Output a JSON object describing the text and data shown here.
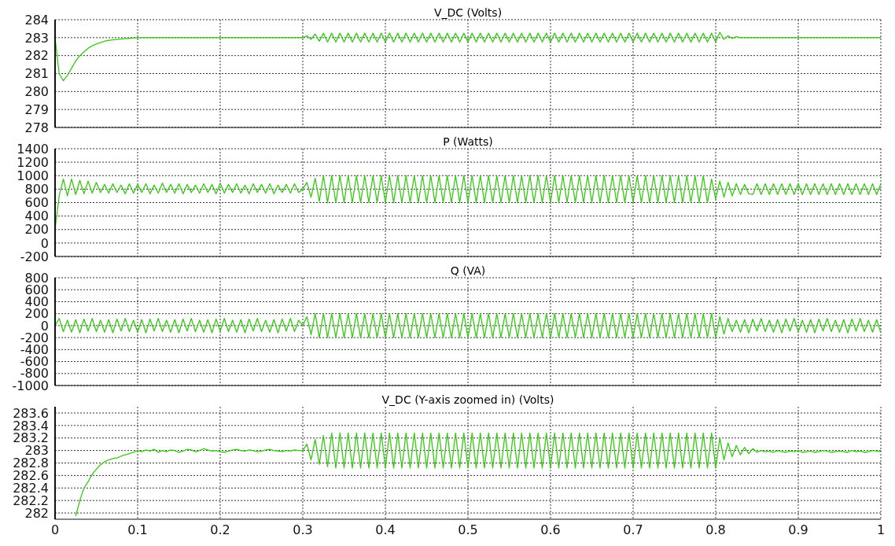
{
  "chart_data": [
    {
      "type": "line",
      "title": "V_DC (Volts)",
      "xlim": [
        0,
        1
      ],
      "xticks": [
        0,
        0.1,
        0.2,
        0.3,
        0.4,
        0.5,
        0.6,
        0.7,
        0.8,
        0.9,
        1
      ],
      "ylim": [
        278,
        284
      ],
      "yticks": [
        278,
        279,
        280,
        281,
        282,
        283,
        284
      ],
      "grid": true,
      "tick_labels": "y",
      "marker": "none",
      "line_style": "solid",
      "x": [
        0,
        0.005,
        0.01,
        0.015,
        0.02,
        0.025,
        0.03,
        0.035,
        0.04,
        0.045,
        0.05,
        0.055,
        0.06,
        0.065,
        0.07,
        0.075,
        0.08,
        0.085,
        0.09,
        0.095,
        0.1,
        0.105,
        0.11,
        0.115,
        0.12,
        0.125,
        0.13,
        0.135,
        0.14,
        0.145,
        0.15,
        0.155,
        0.16,
        0.165,
        0.17,
        0.175,
        0.18,
        0.185,
        0.19,
        0.195,
        0.2,
        0.205,
        0.21,
        0.215,
        0.22,
        0.225,
        0.23,
        0.235,
        0.24,
        0.245,
        0.25,
        0.255,
        0.26,
        0.265,
        0.27,
        0.275,
        0.28,
        0.285,
        0.29,
        0.295,
        0.3,
        0.305,
        0.31,
        0.315,
        0.32,
        0.325,
        0.33,
        0.335,
        0.34,
        0.345,
        0.35,
        0.355,
        0.36,
        0.365,
        0.37,
        0.375,
        0.38,
        0.385,
        0.39,
        0.395,
        0.4,
        0.405,
        0.41,
        0.415,
        0.42,
        0.425,
        0.43,
        0.435,
        0.44,
        0.445,
        0.45,
        0.455,
        0.46,
        0.465,
        0.47,
        0.475,
        0.48,
        0.485,
        0.49,
        0.495,
        0.5,
        0.505,
        0.51,
        0.515,
        0.52,
        0.525,
        0.53,
        0.535,
        0.54,
        0.545,
        0.55,
        0.555,
        0.56,
        0.565,
        0.57,
        0.575,
        0.58,
        0.585,
        0.59,
        0.595,
        0.6,
        0.605,
        0.61,
        0.615,
        0.62,
        0.625,
        0.63,
        0.635,
        0.64,
        0.645,
        0.65,
        0.655,
        0.66,
        0.665,
        0.67,
        0.675,
        0.68,
        0.685,
        0.69,
        0.695,
        0.7,
        0.705,
        0.71,
        0.715,
        0.72,
        0.725,
        0.73,
        0.735,
        0.74,
        0.745,
        0.75,
        0.755,
        0.76,
        0.765,
        0.77,
        0.775,
        0.78,
        0.785,
        0.79,
        0.795,
        0.8,
        0.805,
        0.81,
        0.815,
        0.82,
        0.825,
        0.83,
        0.835,
        0.84,
        0.845,
        0.85,
        0.855,
        0.86,
        0.865,
        0.87,
        0.875,
        0.88,
        0.885,
        0.89,
        0.895,
        0.9,
        0.905,
        0.91,
        0.915,
        0.92,
        0.925,
        0.93,
        0.935,
        0.94,
        0.945,
        0.95,
        0.955,
        0.96,
        0.965,
        0.97,
        0.975,
        0.98,
        0.985,
        0.99,
        0.995,
        1
      ],
      "series": [
        {
          "color": "#33cc11",
          "values": [
            283,
            281,
            280.6,
            280.9,
            281.3,
            281.7,
            282,
            282.2,
            282.4,
            282.55,
            282.65,
            282.72,
            282.8,
            282.85,
            282.88,
            282.9,
            282.92,
            282.94,
            282.96,
            282.98,
            283,
            283,
            283,
            283,
            283,
            283,
            283,
            283,
            283,
            283,
            283,
            283,
            283,
            283,
            283,
            283,
            283,
            283,
            283,
            283,
            283,
            283,
            283,
            283,
            283,
            283,
            283,
            283,
            283,
            283,
            283,
            283,
            283,
            283,
            283,
            283,
            283,
            283,
            283,
            283,
            283,
            283.1,
            282.9,
            283.2,
            282.8,
            283.25,
            282.75,
            283.25,
            282.75,
            283.25,
            282.75,
            283.25,
            282.75,
            283.25,
            282.75,
            283.25,
            282.75,
            283.25,
            282.75,
            283.25,
            282.75,
            283.25,
            282.75,
            283.25,
            282.75,
            283.25,
            282.75,
            283.25,
            282.75,
            283.25,
            282.75,
            283.25,
            282.75,
            283.25,
            282.75,
            283.25,
            282.75,
            283.25,
            282.75,
            283.25,
            282.75,
            283.25,
            282.75,
            283.25,
            282.75,
            283.25,
            282.75,
            283.25,
            282.75,
            283.25,
            282.75,
            283.25,
            282.75,
            283.25,
            282.75,
            283.25,
            282.75,
            283.25,
            282.75,
            283.25,
            282.75,
            283.25,
            282.75,
            283.25,
            282.75,
            283.25,
            282.75,
            283.25,
            282.75,
            283.25,
            282.75,
            283.25,
            282.75,
            283.25,
            282.75,
            283.25,
            282.75,
            283.25,
            282.75,
            283.25,
            282.75,
            283.25,
            282.75,
            283.25,
            282.75,
            283.25,
            282.75,
            283.25,
            282.75,
            283.25,
            282.75,
            283.25,
            282.75,
            283.25,
            282.75,
            283.25,
            282.75,
            283.25,
            282.75,
            283.25,
            282.75,
            283.3,
            282.9,
            283.1,
            282.95,
            283.05,
            283,
            283,
            283,
            283,
            283,
            283,
            283,
            283,
            283,
            283,
            283,
            283,
            283,
            283,
            283,
            283,
            283,
            283,
            283,
            283,
            283,
            283,
            283,
            283,
            283,
            283,
            283,
            283,
            283,
            283,
            283,
            283,
            283,
            283,
            283
          ]
        }
      ]
    },
    {
      "type": "line",
      "title": "P (Watts)",
      "xlim": [
        0,
        1
      ],
      "xticks": [
        0,
        0.1,
        0.2,
        0.3,
        0.4,
        0.5,
        0.6,
        0.7,
        0.8,
        0.9,
        1
      ],
      "ylim": [
        -200,
        1400
      ],
      "yticks": [
        -200,
        0,
        200,
        400,
        600,
        800,
        1000,
        1200,
        1400
      ],
      "grid": true,
      "tick_labels": "y",
      "marker": "none",
      "line_style": "solid",
      "x": [
        0,
        0.005,
        0.01,
        0.015,
        0.02,
        0.025,
        0.03,
        0.035,
        0.04,
        0.045,
        0.05,
        0.055,
        0.06,
        0.065,
        0.07,
        0.075,
        0.08,
        0.085,
        0.09,
        0.095,
        0.1,
        0.105,
        0.11,
        0.115,
        0.12,
        0.125,
        0.13,
        0.135,
        0.14,
        0.145,
        0.15,
        0.155,
        0.16,
        0.165,
        0.17,
        0.175,
        0.18,
        0.185,
        0.19,
        0.195,
        0.2,
        0.205,
        0.21,
        0.215,
        0.22,
        0.225,
        0.23,
        0.235,
        0.24,
        0.245,
        0.25,
        0.255,
        0.26,
        0.265,
        0.27,
        0.275,
        0.28,
        0.285,
        0.29,
        0.295,
        0.3,
        0.305,
        0.31,
        0.315,
        0.32,
        0.325,
        0.33,
        0.335,
        0.34,
        0.345,
        0.35,
        0.355,
        0.36,
        0.365,
        0.37,
        0.375,
        0.38,
        0.385,
        0.39,
        0.395,
        0.4,
        0.405,
        0.41,
        0.415,
        0.42,
        0.425,
        0.43,
        0.435,
        0.44,
        0.445,
        0.45,
        0.455,
        0.46,
        0.465,
        0.47,
        0.475,
        0.48,
        0.485,
        0.49,
        0.495,
        0.5,
        0.505,
        0.51,
        0.515,
        0.52,
        0.525,
        0.53,
        0.535,
        0.54,
        0.545,
        0.55,
        0.555,
        0.56,
        0.565,
        0.57,
        0.575,
        0.58,
        0.585,
        0.59,
        0.595,
        0.6,
        0.605,
        0.61,
        0.615,
        0.62,
        0.625,
        0.63,
        0.635,
        0.64,
        0.645,
        0.65,
        0.655,
        0.66,
        0.665,
        0.67,
        0.675,
        0.68,
        0.685,
        0.69,
        0.695,
        0.7,
        0.705,
        0.71,
        0.715,
        0.72,
        0.725,
        0.73,
        0.735,
        0.74,
        0.745,
        0.75,
        0.755,
        0.76,
        0.765,
        0.77,
        0.775,
        0.78,
        0.785,
        0.79,
        0.795,
        0.8,
        0.805,
        0.81,
        0.815,
        0.82,
        0.825,
        0.83,
        0.835,
        0.84,
        0.845,
        0.85,
        0.855,
        0.86,
        0.865,
        0.87,
        0.875,
        0.88,
        0.885,
        0.89,
        0.895,
        0.9,
        0.905,
        0.91,
        0.915,
        0.92,
        0.925,
        0.93,
        0.935,
        0.94,
        0.945,
        0.95,
        0.955,
        0.96,
        0.965,
        0.97,
        0.975,
        0.98,
        0.985,
        0.99,
        0.995,
        1
      ],
      "series": [
        {
          "color": "#33cc11",
          "values": [
            200,
            700,
            950,
            700,
            950,
            720,
            930,
            730,
            920,
            740,
            900,
            750,
            870,
            740,
            880,
            750,
            860,
            730,
            880,
            740,
            870,
            750,
            880,
            730,
            860,
            740,
            890,
            750,
            870,
            740,
            880,
            730,
            870,
            750,
            860,
            740,
            880,
            750,
            870,
            730,
            890,
            740,
            870,
            750,
            880,
            740,
            860,
            730,
            880,
            750,
            870,
            740,
            880,
            730,
            860,
            750,
            870,
            740,
            880,
            750,
            800,
            900,
            680,
            960,
            620,
            1000,
            600,
            1000,
            600,
            1000,
            600,
            1000,
            600,
            1000,
            600,
            1000,
            600,
            1000,
            600,
            1000,
            600,
            1000,
            600,
            1000,
            600,
            1000,
            600,
            1000,
            600,
            1000,
            600,
            1000,
            600,
            1000,
            600,
            1000,
            600,
            1000,
            600,
            1000,
            600,
            1000,
            600,
            1000,
            600,
            1000,
            600,
            1000,
            600,
            1000,
            600,
            1000,
            600,
            1000,
            600,
            1000,
            600,
            1000,
            600,
            1000,
            600,
            1000,
            600,
            1000,
            600,
            1000,
            600,
            1000,
            600,
            1000,
            600,
            1000,
            600,
            1000,
            600,
            1000,
            600,
            1000,
            600,
            1000,
            600,
            1000,
            600,
            1000,
            600,
            1000,
            600,
            1000,
            600,
            1000,
            600,
            1000,
            600,
            1000,
            600,
            1000,
            600,
            1000,
            600,
            950,
            650,
            920,
            680,
            900,
            700,
            880,
            720,
            870,
            730,
            720,
            880,
            720,
            880,
            720,
            880,
            720,
            880,
            720,
            880,
            720,
            880,
            720,
            880,
            720,
            880,
            720,
            880,
            720,
            880,
            720,
            880,
            720,
            880,
            720,
            880,
            720,
            880,
            720,
            880,
            720,
            880
          ]
        }
      ]
    },
    {
      "type": "line",
      "title": "Q (VA)",
      "xlim": [
        0,
        1
      ],
      "xticks": [
        0,
        0.1,
        0.2,
        0.3,
        0.4,
        0.5,
        0.6,
        0.7,
        0.8,
        0.9,
        1
      ],
      "ylim": [
        -1000,
        800
      ],
      "yticks": [
        -1000,
        -800,
        -600,
        -400,
        -200,
        0,
        200,
        400,
        600,
        800
      ],
      "grid": true,
      "tick_labels": "y",
      "marker": "none",
      "line_style": "solid",
      "x": [
        0,
        0.005,
        0.01,
        0.015,
        0.02,
        0.025,
        0.03,
        0.035,
        0.04,
        0.045,
        0.05,
        0.055,
        0.06,
        0.065,
        0.07,
        0.075,
        0.08,
        0.085,
        0.09,
        0.095,
        0.1,
        0.105,
        0.11,
        0.115,
        0.12,
        0.125,
        0.13,
        0.135,
        0.14,
        0.145,
        0.15,
        0.155,
        0.16,
        0.165,
        0.17,
        0.175,
        0.18,
        0.185,
        0.19,
        0.195,
        0.2,
        0.205,
        0.21,
        0.215,
        0.22,
        0.225,
        0.23,
        0.235,
        0.24,
        0.245,
        0.25,
        0.255,
        0.26,
        0.265,
        0.27,
        0.275,
        0.28,
        0.285,
        0.29,
        0.295,
        0.3,
        0.305,
        0.31,
        0.315,
        0.32,
        0.325,
        0.33,
        0.335,
        0.34,
        0.345,
        0.35,
        0.355,
        0.36,
        0.365,
        0.37,
        0.375,
        0.38,
        0.385,
        0.39,
        0.395,
        0.4,
        0.405,
        0.41,
        0.415,
        0.42,
        0.425,
        0.43,
        0.435,
        0.44,
        0.445,
        0.45,
        0.455,
        0.46,
        0.465,
        0.47,
        0.475,
        0.48,
        0.485,
        0.49,
        0.495,
        0.5,
        0.505,
        0.51,
        0.515,
        0.52,
        0.525,
        0.53,
        0.535,
        0.54,
        0.545,
        0.55,
        0.555,
        0.56,
        0.565,
        0.57,
        0.575,
        0.58,
        0.585,
        0.59,
        0.595,
        0.6,
        0.605,
        0.61,
        0.615,
        0.62,
        0.625,
        0.63,
        0.635,
        0.64,
        0.645,
        0.65,
        0.655,
        0.66,
        0.665,
        0.67,
        0.675,
        0.68,
        0.685,
        0.69,
        0.695,
        0.7,
        0.705,
        0.71,
        0.715,
        0.72,
        0.725,
        0.73,
        0.735,
        0.74,
        0.745,
        0.75,
        0.755,
        0.76,
        0.765,
        0.77,
        0.775,
        0.78,
        0.785,
        0.79,
        0.795,
        0.8,
        0.805,
        0.81,
        0.815,
        0.82,
        0.825,
        0.83,
        0.835,
        0.84,
        0.845,
        0.85,
        0.855,
        0.86,
        0.865,
        0.87,
        0.875,
        0.88,
        0.885,
        0.89,
        0.895,
        0.9,
        0.905,
        0.91,
        0.915,
        0.92,
        0.925,
        0.93,
        0.935,
        0.94,
        0.945,
        0.95,
        0.955,
        0.96,
        0.965,
        0.97,
        0.975,
        0.98,
        0.985,
        0.99,
        0.995,
        1
      ],
      "series": [
        {
          "color": "#33cc11",
          "values": [
            0,
            120,
            -100,
            90,
            -110,
            100,
            -120,
            110,
            -90,
            120,
            -100,
            90,
            -110,
            100,
            -120,
            110,
            -90,
            120,
            -100,
            90,
            -110,
            100,
            -120,
            110,
            -90,
            120,
            -100,
            90,
            -110,
            100,
            -120,
            110,
            -90,
            120,
            -100,
            90,
            -110,
            100,
            -120,
            110,
            -90,
            120,
            -100,
            90,
            -110,
            100,
            -120,
            110,
            -90,
            120,
            -100,
            90,
            -110,
            100,
            -120,
            110,
            -90,
            120,
            -100,
            90,
            0,
            150,
            -150,
            200,
            -200,
            200,
            -200,
            200,
            -200,
            200,
            -200,
            200,
            -200,
            200,
            -200,
            200,
            -200,
            200,
            -200,
            200,
            -200,
            200,
            -200,
            200,
            -200,
            200,
            -200,
            200,
            -200,
            200,
            -200,
            200,
            -200,
            200,
            -200,
            200,
            -200,
            200,
            -200,
            200,
            -200,
            200,
            -200,
            200,
            -200,
            200,
            -200,
            200,
            -200,
            200,
            -200,
            200,
            -200,
            200,
            -200,
            200,
            -200,
            200,
            -200,
            200,
            -200,
            200,
            -200,
            200,
            -200,
            200,
            -200,
            200,
            -200,
            200,
            -200,
            200,
            -200,
            200,
            -200,
            200,
            -200,
            200,
            -200,
            200,
            -200,
            200,
            -200,
            200,
            -200,
            200,
            -200,
            200,
            -200,
            200,
            -200,
            200,
            -200,
            200,
            -200,
            200,
            -200,
            200,
            -200,
            200,
            -200,
            150,
            -140,
            120,
            -100,
            90,
            -110,
            100,
            -120,
            110,
            -90,
            120,
            -100,
            90,
            -110,
            100,
            -120,
            110,
            -90,
            120,
            -100,
            90,
            -110,
            100,
            -120,
            110,
            -90,
            120,
            -100,
            90,
            -110,
            100,
            -120,
            110,
            -90,
            120,
            -100,
            90,
            -110,
            100,
            -120
          ]
        }
      ]
    },
    {
      "type": "line",
      "title": "V_DC (Y-axis zoomed in) (Volts)",
      "xlim": [
        0,
        1
      ],
      "xticks": [
        0,
        0.1,
        0.2,
        0.3,
        0.4,
        0.5,
        0.6,
        0.7,
        0.8,
        0.9,
        1
      ],
      "ylim": [
        281.9,
        283.7
      ],
      "yticks": [
        282,
        282.2,
        282.4,
        282.6,
        282.8,
        283,
        283.2,
        283.4,
        283.6
      ],
      "grid": true,
      "marker": "none",
      "line_style": "solid",
      "x": [
        0.025,
        0.03,
        0.035,
        0.04,
        0.045,
        0.05,
        0.055,
        0.06,
        0.065,
        0.07,
        0.075,
        0.08,
        0.085,
        0.09,
        0.095,
        0.1,
        0.105,
        0.11,
        0.115,
        0.12,
        0.125,
        0.13,
        0.135,
        0.14,
        0.145,
        0.15,
        0.155,
        0.16,
        0.165,
        0.17,
        0.175,
        0.18,
        0.185,
        0.19,
        0.195,
        0.2,
        0.205,
        0.21,
        0.215,
        0.22,
        0.225,
        0.23,
        0.235,
        0.24,
        0.245,
        0.25,
        0.255,
        0.26,
        0.265,
        0.27,
        0.275,
        0.28,
        0.285,
        0.29,
        0.295,
        0.3,
        0.305,
        0.31,
        0.315,
        0.32,
        0.325,
        0.33,
        0.335,
        0.34,
        0.345,
        0.35,
        0.355,
        0.36,
        0.365,
        0.37,
        0.375,
        0.38,
        0.385,
        0.39,
        0.395,
        0.4,
        0.405,
        0.41,
        0.415,
        0.42,
        0.425,
        0.43,
        0.435,
        0.44,
        0.445,
        0.45,
        0.455,
        0.46,
        0.465,
        0.47,
        0.475,
        0.48,
        0.485,
        0.49,
        0.495,
        0.5,
        0.505,
        0.51,
        0.515,
        0.52,
        0.525,
        0.53,
        0.535,
        0.54,
        0.545,
        0.55,
        0.555,
        0.56,
        0.565,
        0.57,
        0.575,
        0.58,
        0.585,
        0.59,
        0.595,
        0.6,
        0.605,
        0.61,
        0.615,
        0.62,
        0.625,
        0.63,
        0.635,
        0.64,
        0.645,
        0.65,
        0.655,
        0.66,
        0.665,
        0.67,
        0.675,
        0.68,
        0.685,
        0.69,
        0.695,
        0.7,
        0.705,
        0.71,
        0.715,
        0.72,
        0.725,
        0.73,
        0.735,
        0.74,
        0.745,
        0.75,
        0.755,
        0.76,
        0.765,
        0.77,
        0.775,
        0.78,
        0.785,
        0.79,
        0.795,
        0.8,
        0.805,
        0.81,
        0.815,
        0.82,
        0.825,
        0.83,
        0.835,
        0.84,
        0.845,
        0.85,
        0.855,
        0.86,
        0.865,
        0.87,
        0.875,
        0.88,
        0.885,
        0.89,
        0.895,
        0.9,
        0.905,
        0.91,
        0.915,
        0.92,
        0.925,
        0.93,
        0.935,
        0.94,
        0.945,
        0.95,
        0.955,
        0.96,
        0.965,
        0.97,
        0.975,
        0.98,
        0.985,
        0.99,
        0.995,
        1
      ],
      "series": [
        {
          "color": "#33cc11",
          "values": [
            281.95,
            282.2,
            282.4,
            282.5,
            282.62,
            282.7,
            282.77,
            282.82,
            282.85,
            282.87,
            282.88,
            282.91,
            282.93,
            282.95,
            282.97,
            283,
            282.98,
            283.01,
            282.99,
            283.02,
            282.97,
            283,
            282.98,
            283.01,
            283,
            282.97,
            282.99,
            283.02,
            283.01,
            282.98,
            283,
            283.03,
            283.01,
            282.99,
            283,
            282.98,
            282.97,
            282.99,
            283.01,
            283.02,
            283,
            282.99,
            283.01,
            283,
            282.98,
            282.99,
            283.01,
            283.02,
            283,
            282.99,
            282.98,
            283,
            282.99,
            283.01,
            283,
            283,
            283.1,
            282.85,
            283.18,
            282.78,
            283.24,
            282.74,
            283.28,
            282.72,
            283.28,
            282.72,
            283.28,
            282.72,
            283.28,
            282.72,
            283.28,
            282.72,
            283.28,
            282.72,
            283.28,
            282.72,
            283.28,
            282.72,
            283.28,
            282.72,
            283.28,
            282.72,
            283.28,
            282.72,
            283.28,
            282.72,
            283.28,
            282.72,
            283.28,
            282.72,
            283.28,
            282.72,
            283.28,
            282.72,
            283.28,
            282.72,
            283.28,
            282.72,
            283.28,
            282.72,
            283.28,
            282.72,
            283.28,
            282.72,
            283.28,
            282.72,
            283.28,
            282.72,
            283.28,
            282.72,
            283.28,
            282.72,
            283.28,
            282.72,
            283.28,
            282.72,
            283.28,
            282.72,
            283.28,
            282.72,
            283.28,
            282.72,
            283.28,
            282.72,
            283.28,
            282.72,
            283.28,
            282.72,
            283.28,
            282.72,
            283.28,
            282.72,
            283.28,
            282.72,
            283.28,
            282.72,
            283.28,
            282.72,
            283.28,
            282.72,
            283.28,
            282.72,
            283.28,
            282.72,
            283.28,
            282.72,
            283.28,
            282.72,
            283.28,
            282.72,
            283.28,
            282.72,
            283.28,
            282.72,
            283.28,
            282.72,
            283.2,
            282.85,
            283.12,
            282.9,
            283.08,
            282.93,
            283.05,
            282.95,
            283.03,
            282.97,
            283,
            282.98,
            282.99,
            282.97,
            283,
            282.98,
            282.97,
            282.99,
            282.98,
            283,
            282.97,
            282.98,
            282.99,
            282.97,
            282.98,
            283,
            282.99,
            282.97,
            282.98,
            282.99,
            282.98,
            282.97,
            283,
            282.98,
            282.99,
            282.97,
            282.98,
            283,
            282.99,
            282.98
          ]
        }
      ]
    }
  ]
}
